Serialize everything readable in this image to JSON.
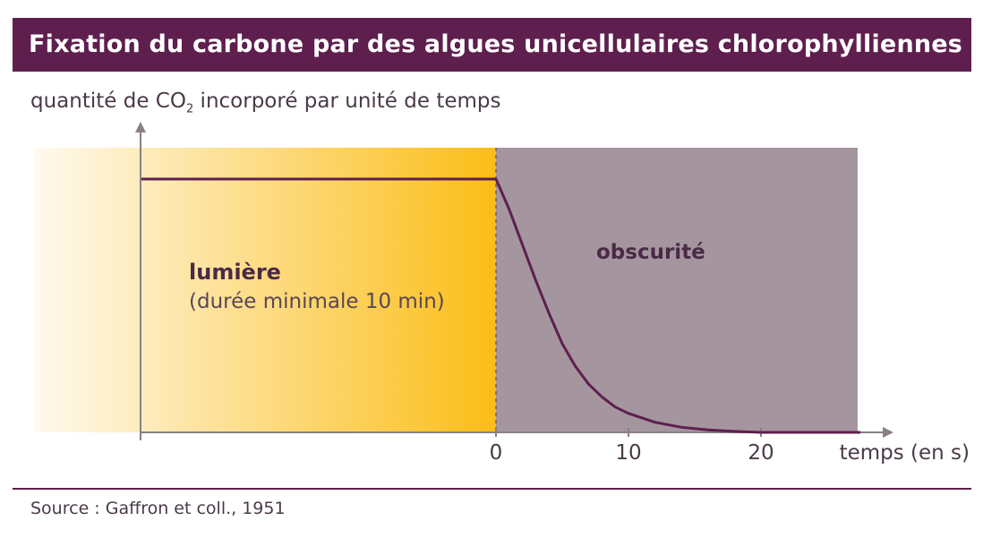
{
  "title": "Fixation du carbone par des algues unicellulaires chlorophylliennes",
  "source": "Source : Gaffron et coll., 1951",
  "colors": {
    "title_bg": "#5e1f4f",
    "curve": "#5e1f4f",
    "light_zone": "#fbbd16",
    "dark_zone": "#a5959f",
    "axis": "#8a7f87"
  },
  "chart_data": {
    "type": "line",
    "title": "Fixation du carbone par des algues unicellulaires chlorophylliennes",
    "ylabel": {
      "prefix": "quantité de CO",
      "subscript": "2",
      "suffix": " incorporé par unité de temps"
    },
    "xlabel": "temps (en s)",
    "x_ticks": [
      0,
      10,
      20
    ],
    "xlim": [
      -27,
      30
    ],
    "ylim": [
      0,
      1.15
    ],
    "regions": [
      {
        "label": "lumière",
        "sublabel": "(durée minimale 10 min)",
        "x_start": -27,
        "x_end": 0
      },
      {
        "label": "obscurité",
        "sublabel": "",
        "x_start": 0,
        "x_end": 27.5
      }
    ],
    "series": [
      {
        "x": [
          -27,
          -20,
          -10,
          -5,
          0,
          1,
          2,
          3,
          4,
          5,
          6,
          7,
          8,
          9,
          10,
          12,
          14,
          16,
          18,
          20,
          22,
          24,
          27.5
        ],
        "y": [
          1.0,
          1.0,
          1.0,
          1.0,
          1.0,
          0.88,
          0.74,
          0.6,
          0.47,
          0.35,
          0.26,
          0.19,
          0.14,
          0.1,
          0.075,
          0.04,
          0.02,
          0.01,
          0.004,
          0.0,
          0.0,
          0.0,
          0.0
        ]
      }
    ]
  }
}
